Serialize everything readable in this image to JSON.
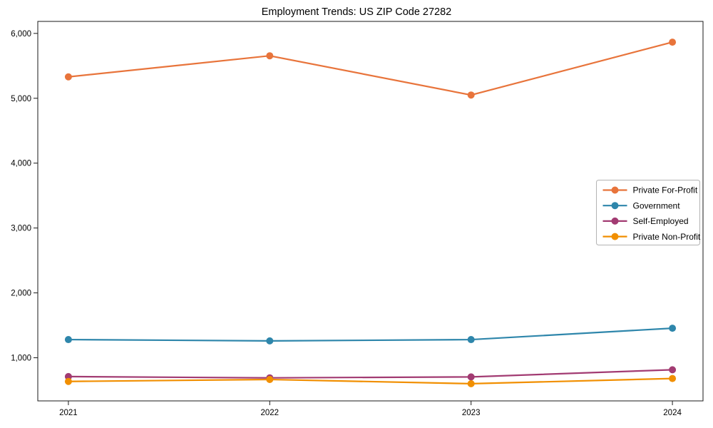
{
  "chart_data": {
    "type": "line",
    "title": "Employment Trends: US ZIP Code 27282",
    "xlabel": "",
    "ylabel": "",
    "categories": [
      "2021",
      "2022",
      "2023",
      "2024"
    ],
    "y_ticks": [
      1000,
      2000,
      3000,
      4000,
      5000,
      6000
    ],
    "y_tick_labels": [
      "1,000",
      "2,000",
      "3,000",
      "4,000",
      "5,000",
      "6,000"
    ],
    "ylim": [
      335,
      6185
    ],
    "grid": false,
    "legend_position": "center right",
    "marker": "circle",
    "series": [
      {
        "name": "Private For-Profit",
        "color": "#e8743b",
        "values": [
          5330,
          5655,
          5050,
          5865
        ]
      },
      {
        "name": "Government",
        "color": "#2e86ab",
        "values": [
          1280,
          1260,
          1280,
          1455
        ]
      },
      {
        "name": "Self-Employed",
        "color": "#a23b72",
        "values": [
          710,
          690,
          705,
          815
        ]
      },
      {
        "name": "Private Non-Profit",
        "color": "#f18f01",
        "values": [
          635,
          665,
          600,
          680
        ]
      }
    ],
    "colors": {
      "spine": "#1a1a1a",
      "tick_label": "#000000",
      "legend_border": "#b3b3b3",
      "background": "#ffffff"
    }
  }
}
